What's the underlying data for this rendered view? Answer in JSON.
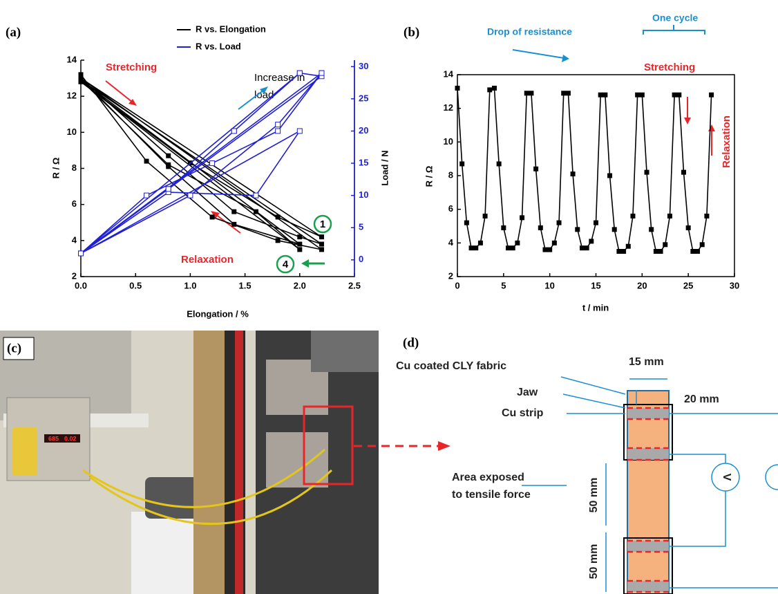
{
  "chart_data": [
    {
      "type": "line",
      "panel_label": "(a)",
      "x_label": "Elongation / %",
      "y_label": "R / Ω",
      "y2_label": "Load / N",
      "x": [
        0,
        0.6,
        1.2,
        1.8,
        2.2,
        0,
        0.8,
        1.4,
        2.0,
        2.2,
        0,
        0.8,
        1.6,
        2.0,
        0,
        1.0,
        1.8,
        2.2,
        0,
        0.8,
        1.4,
        2.0,
        0
      ],
      "series": [
        {
          "name": "R vs. Elongation",
          "color": "#000000",
          "values": [
            13.2,
            8.4,
            5.3,
            4.0,
            3.5,
            13.0,
            8.7,
            5.6,
            4.2,
            3.8,
            12.9,
            8.2,
            5.6,
            3.5,
            12.8,
            8.3,
            5.3,
            4.2,
            13.0,
            8.1,
            4.9,
            3.8,
            12.9
          ]
        },
        {
          "name": "R vs. Load",
          "color": "#1f1fd6",
          "axis": "y2",
          "values": [
            1,
            10,
            15,
            20,
            29,
            1,
            11,
            20,
            29,
            28.5,
            1,
            10.5,
            10,
            20,
            1,
            10,
            21,
            29,
            1,
            11,
            20,
            29,
            1
          ]
        }
      ],
      "xlim": [
        0,
        2.5
      ],
      "xticks": [
        {
          "value": 0,
          "label": "0.0"
        },
        0.5,
        {
          "value": 1,
          "label": "1.0"
        },
        1.5,
        {
          "value": 2,
          "label": "2.0"
        },
        2.5
      ],
      "ylim": [
        2,
        14
      ],
      "yticks": [
        2,
        4,
        6,
        8,
        10,
        12,
        14
      ],
      "y2lim": [
        -2.6,
        31
      ],
      "y2ticks": [
        0,
        5,
        10,
        15,
        20,
        25,
        30
      ],
      "annotations": [
        "Stretching",
        "Increase in",
        "load",
        "Relaxation",
        "1",
        "4"
      ]
    },
    {
      "type": "line",
      "panel_label": "(b)",
      "x_label": "t / min",
      "y_label": "R / Ω",
      "x": [
        0,
        0.5,
        1,
        1.5,
        2,
        2.5,
        3,
        3.5,
        4,
        4.5,
        5,
        5.5,
        6,
        6.5,
        7,
        7.5,
        8,
        8.5,
        9,
        9.5,
        10,
        10.5,
        11,
        11.5,
        12,
        12.5,
        13,
        13.5,
        14,
        14.5,
        15,
        15.5,
        16,
        16.5,
        17,
        17.5,
        18,
        18.5,
        19,
        19.5,
        20,
        20.5,
        21,
        21.5,
        22,
        22.5,
        23,
        23.5,
        24,
        24.5,
        25,
        25.5,
        26,
        26.5,
        27,
        27.5
      ],
      "series": [
        {
          "color": "#000000",
          "values": [
            13.2,
            8.7,
            5.2,
            3.7,
            3.7,
            4.0,
            5.6,
            13.1,
            13.2,
            8.7,
            4.9,
            3.7,
            3.7,
            4.0,
            5.5,
            12.9,
            12.9,
            8.4,
            4.9,
            3.6,
            3.6,
            4.0,
            5.2,
            12.9,
            12.9,
            8.1,
            4.8,
            3.7,
            3.7,
            4.1,
            5.2,
            12.8,
            12.8,
            8.0,
            4.8,
            3.5,
            3.5,
            3.8,
            5.6,
            12.8,
            12.8,
            8.2,
            4.8,
            3.5,
            3.5,
            3.9,
            5.6,
            12.8,
            12.8,
            8.2,
            4.9,
            3.5,
            3.5,
            3.9,
            5.6,
            12.8
          ]
        }
      ],
      "xlim": [
        0,
        30
      ],
      "xticks": [
        0,
        5,
        10,
        15,
        20,
        25,
        30
      ],
      "ylim": [
        2,
        14
      ],
      "yticks": [
        2,
        4,
        6,
        8,
        10,
        12,
        14
      ],
      "annotations": [
        "Drop of resistance",
        "One cycle",
        "Stretching",
        "Relaxation"
      ]
    }
  ],
  "photo": {
    "panel_label": "(c)",
    "meter_display": [
      "685",
      "0.02"
    ]
  },
  "diagram": {
    "panel_label": "(d)",
    "labels": [
      "Cu coated CLY fabric",
      "15 mm",
      "Jaw",
      "20 mm",
      "Cu strip",
      "Area exposed",
      "to tensile force",
      "50 mm",
      "50 mm",
      "V"
    ]
  }
}
